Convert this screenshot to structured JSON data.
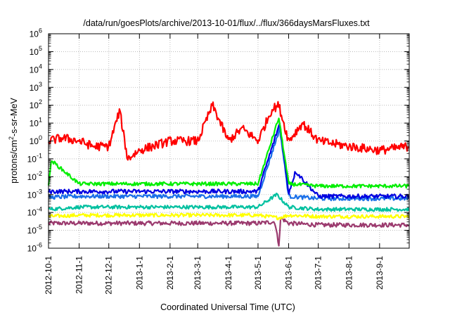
{
  "chart_data": {
    "type": "line",
    "title": "/data/run/goesPlots/archive/2013-10-01/flux/../flux/366daysMarsFluxes.txt",
    "xlabel": "Coordinated Universal Time (UTC)",
    "ylabel": {
      "prefix": "protons/cm",
      "superscript": "2",
      "suffix": "-s-sr-MeV"
    },
    "x_scale": "time",
    "xlim": [
      "2012-10-01",
      "2013-10-01"
    ],
    "x_ticks": [
      "2012-10-1",
      "2012-11-1",
      "2012-12-1",
      "2013-1-1",
      "2013-2-1",
      "2013-3-1",
      "2013-4-1",
      "2013-5-1",
      "2013-6-1",
      "2013-7-1",
      "2013-8-1",
      "2013-9-1"
    ],
    "y_scale": "log",
    "ylim": [
      1e-06,
      1000000.0
    ],
    "y_ticks": [
      {
        "base": "10",
        "exp": "-6"
      },
      {
        "base": "10",
        "exp": "-5"
      },
      {
        "base": "10",
        "exp": "-4"
      },
      {
        "base": "10",
        "exp": "-3"
      },
      {
        "base": "10",
        "exp": "-2"
      },
      {
        "base": "10",
        "exp": "-1"
      },
      {
        "base": "10",
        "exp": "0"
      },
      {
        "base": "10",
        "exp": "1"
      },
      {
        "base": "10",
        "exp": "2"
      },
      {
        "base": "10",
        "exp": "3"
      },
      {
        "base": "10",
        "exp": "4"
      },
      {
        "base": "10",
        "exp": "5"
      },
      {
        "base": "10",
        "exp": "6"
      }
    ],
    "grid": true,
    "series": [
      {
        "color": "#9b3a6e",
        "values": [
          [
            "2012-10-01",
            2.5e-05
          ],
          [
            "2012-11-01",
            2.5e-05
          ],
          [
            "2012-12-01",
            2.5e-05
          ],
          [
            "2013-01-01",
            2.5e-05
          ],
          [
            "2013-02-01",
            2.5e-05
          ],
          [
            "2013-03-01",
            2.5e-05
          ],
          [
            "2013-04-01",
            2.5e-05
          ],
          [
            "2013-05-01",
            2.5e-05
          ],
          [
            "2013-05-18",
            3e-05
          ],
          [
            "2013-05-22",
            1.5e-06
          ],
          [
            "2013-05-24",
            5e-05
          ],
          [
            "2013-06-01",
            2.5e-05
          ],
          [
            "2013-07-01",
            2e-05
          ],
          [
            "2013-08-01",
            2e-05
          ],
          [
            "2013-09-01",
            2e-05
          ],
          [
            "2013-10-01",
            2e-05
          ]
        ]
      },
      {
        "color": "#ffff00",
        "values": [
          [
            "2012-10-01",
            6e-05
          ],
          [
            "2012-11-01",
            7e-05
          ],
          [
            "2012-12-01",
            7e-05
          ],
          [
            "2013-01-01",
            7e-05
          ],
          [
            "2013-02-01",
            7e-05
          ],
          [
            "2013-03-01",
            7e-05
          ],
          [
            "2013-04-01",
            7e-05
          ],
          [
            "2013-05-01",
            7e-05
          ],
          [
            "2013-05-22",
            5e-05
          ],
          [
            "2013-06-01",
            7e-05
          ],
          [
            "2013-07-01",
            6e-05
          ],
          [
            "2013-08-01",
            6e-05
          ],
          [
            "2013-09-01",
            6e-05
          ],
          [
            "2013-10-01",
            6e-05
          ]
        ]
      },
      {
        "color": "#00c0a0",
        "values": [
          [
            "2012-10-01",
            0.00015
          ],
          [
            "2012-11-01",
            0.0002
          ],
          [
            "2012-12-01",
            0.0002
          ],
          [
            "2013-01-01",
            0.0002
          ],
          [
            "2013-02-01",
            0.0002
          ],
          [
            "2013-03-01",
            0.0002
          ],
          [
            "2013-04-01",
            0.0002
          ],
          [
            "2013-05-01",
            0.0002
          ],
          [
            "2013-05-20",
            0.001
          ],
          [
            "2013-06-01",
            0.0002
          ],
          [
            "2013-07-01",
            0.00015
          ],
          [
            "2013-08-01",
            0.00015
          ],
          [
            "2013-09-01",
            0.00015
          ],
          [
            "2013-10-01",
            0.00015
          ]
        ]
      },
      {
        "color": "#1a6fe8",
        "values": [
          [
            "2012-10-01",
            0.0007
          ],
          [
            "2012-11-01",
            0.0008
          ],
          [
            "2012-12-01",
            0.0008
          ],
          [
            "2013-01-01",
            0.0008
          ],
          [
            "2013-02-01",
            0.0008
          ],
          [
            "2013-03-01",
            0.0008
          ],
          [
            "2013-04-01",
            0.0008
          ],
          [
            "2013-05-01",
            0.0008
          ],
          [
            "2013-05-23",
            5
          ],
          [
            "2013-06-01",
            0.0008
          ],
          [
            "2013-07-01",
            0.0006
          ],
          [
            "2013-08-01",
            0.0006
          ],
          [
            "2013-09-01",
            0.0006
          ],
          [
            "2013-10-01",
            0.0006
          ]
        ]
      },
      {
        "color": "#0000e0",
        "values": [
          [
            "2012-10-01",
            0.0015
          ],
          [
            "2012-11-01",
            0.0015
          ],
          [
            "2012-12-01",
            0.0015
          ],
          [
            "2013-01-01",
            0.0015
          ],
          [
            "2013-02-01",
            0.0015
          ],
          [
            "2013-03-01",
            0.0015
          ],
          [
            "2013-04-01",
            0.0015
          ],
          [
            "2013-05-01",
            0.0015
          ],
          [
            "2013-05-23",
            10
          ],
          [
            "2013-06-01",
            0.0012
          ],
          [
            "2013-06-08",
            0.02
          ],
          [
            "2013-07-01",
            0.0008
          ],
          [
            "2013-08-01",
            0.0008
          ],
          [
            "2013-09-01",
            0.0008
          ],
          [
            "2013-10-01",
            0.0008
          ]
        ]
      },
      {
        "color": "#00ee00",
        "values": [
          [
            "2012-10-01",
            0.004
          ],
          [
            "2012-10-04",
            0.08
          ],
          [
            "2012-11-01",
            0.004
          ],
          [
            "2012-12-01",
            0.004
          ],
          [
            "2013-01-01",
            0.004
          ],
          [
            "2013-02-01",
            0.004
          ],
          [
            "2013-03-01",
            0.004
          ],
          [
            "2013-04-01",
            0.004
          ],
          [
            "2013-05-01",
            0.004
          ],
          [
            "2013-05-22",
            20
          ],
          [
            "2013-06-01",
            0.004
          ],
          [
            "2013-07-01",
            0.003
          ],
          [
            "2013-08-01",
            0.003
          ],
          [
            "2013-09-01",
            0.003
          ],
          [
            "2013-10-01",
            0.003
          ]
        ]
      },
      {
        "color": "#ff0000",
        "values": [
          [
            "2012-10-01",
            1
          ],
          [
            "2012-10-15",
            1.5
          ],
          [
            "2012-11-01",
            1
          ],
          [
            "2012-11-15",
            0.5
          ],
          [
            "2012-12-01",
            0.5
          ],
          [
            "2012-12-12",
            50
          ],
          [
            "2012-12-20",
            0.1
          ],
          [
            "2013-01-01",
            0.3
          ],
          [
            "2013-02-01",
            1
          ],
          [
            "2013-03-01",
            1
          ],
          [
            "2013-03-16",
            100
          ],
          [
            "2013-04-01",
            1
          ],
          [
            "2013-04-15",
            5
          ],
          [
            "2013-05-01",
            1
          ],
          [
            "2013-05-15",
            60
          ],
          [
            "2013-05-22",
            100
          ],
          [
            "2013-06-01",
            1
          ],
          [
            "2013-06-15",
            10
          ],
          [
            "2013-07-01",
            1
          ],
          [
            "2013-08-01",
            0.5
          ],
          [
            "2013-09-01",
            0.3
          ],
          [
            "2013-10-01",
            0.5
          ]
        ]
      }
    ]
  }
}
